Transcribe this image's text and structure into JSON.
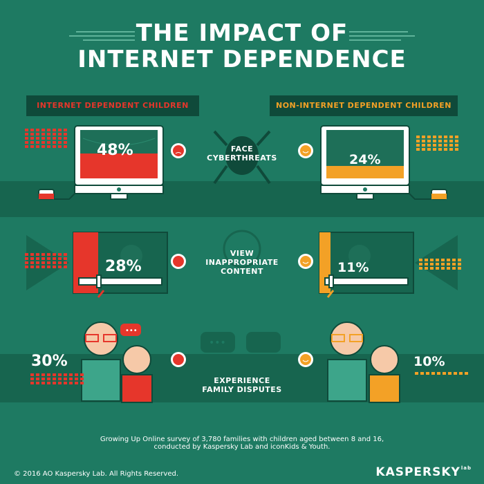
{
  "title": {
    "line1": "THE IMPACT OF",
    "line2": "INTERNET DEPENDENCE"
  },
  "headers": {
    "left": "INTERNET DEPENDENT CHILDREN",
    "right": "NON-INTERNET DEPENDENT CHILDREN"
  },
  "rows": [
    {
      "label_line1": "FACE",
      "label_line2": "CYBERTHREATS",
      "left_value": "48%",
      "right_value": "24%",
      "left_pct": 48,
      "right_pct": 24
    },
    {
      "label_line1": "VIEW",
      "label_line2": "INAPPROPRIATE",
      "label_line3": "CONTENT",
      "left_value": "28%",
      "right_value": "11%",
      "left_pct": 28,
      "right_pct": 11
    },
    {
      "label_line1": "EXPERIENCE",
      "label_line2": "FAMILY DISPUTES",
      "left_value": "30%",
      "right_value": "10%",
      "left_pct": 30,
      "right_pct": 10
    }
  ],
  "footer": {
    "source_line1": "Growing Up Online survey of 3,780 families with children aged between 8 and 16,",
    "source_line2": "conducted by Kaspersky Lab and iconKids & Youth.",
    "copyright": "© 2016 AO Kaspersky Lab. All Rights Reserved.",
    "brand": "KASPERSKY",
    "brand_suffix": "lab"
  },
  "colors": {
    "background": "#1e7a62",
    "band": "#17654f",
    "red": "#e6362b",
    "orange": "#f3a126",
    "white": "#ffffff",
    "dark": "#0f4a3a"
  },
  "icons": [
    "sad-face-icon",
    "smile-face-icon",
    "spider-icon",
    "monitor-icon",
    "mouse-icon",
    "play-icon",
    "chat-bubble-icon",
    "speech-bubble-icon"
  ]
}
